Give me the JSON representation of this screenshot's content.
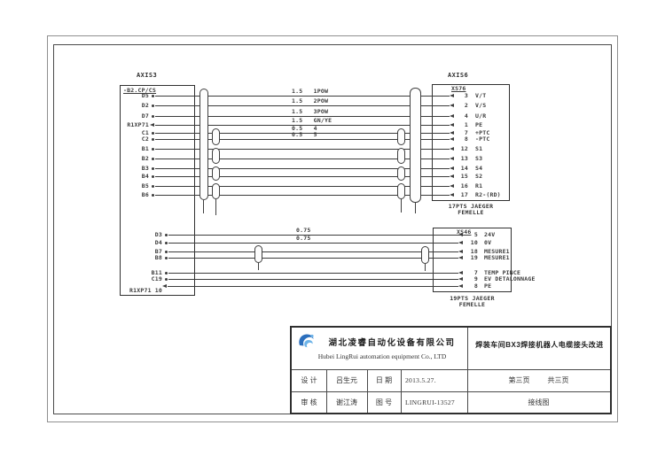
{
  "ink": "#3b3b3b",
  "logo_blue": "#2c6fbd",
  "logo_blue_light": "#6db3e8",
  "diagram": {
    "left_connector": {
      "title": "AXIS3",
      "header": "-B2.CP/CS",
      "footer": "R1XP71 10"
    },
    "right_connector_top": {
      "title": "AXIS6",
      "sub": "XS76",
      "caption1": "17PTS JAEGER",
      "caption2": "FEMELLE"
    },
    "right_connector_bottom": {
      "sub": "XS46",
      "caption1": "19PTS JAEGER",
      "caption2": "FEMELLE"
    },
    "top_wires": [
      {
        "from": "D5",
        "size": "1.5",
        "wire": "1POW",
        "pin": "3",
        "signal": "V/T"
      },
      {
        "from": "D2",
        "size": "1.5",
        "wire": "2POW",
        "pin": "2",
        "signal": "V/S"
      },
      {
        "from": "D7",
        "size": "1.5",
        "wire": "3POW",
        "pin": "4",
        "signal": "U/R"
      },
      {
        "from": "R1XP71",
        "arrow": true,
        "size": "1.5",
        "wire": "GN/YE",
        "pin": "1",
        "signal": "PE"
      },
      {
        "from": "C1",
        "size": "0.5",
        "wire": "4",
        "pin": "7",
        "signal": "+PTC"
      },
      {
        "from": "C2",
        "size": "0.5",
        "wire": "5",
        "pin": "8",
        "signal": "-PTC"
      },
      {
        "from": "B1",
        "pin": "12",
        "signal": "S1"
      },
      {
        "from": "B2",
        "pin": "13",
        "signal": "S3"
      },
      {
        "from": "B3",
        "pin": "14",
        "signal": "S4"
      },
      {
        "from": "B4",
        "pin": "15",
        "signal": "S2"
      },
      {
        "from": "B5",
        "pin": "16",
        "signal": "R1"
      },
      {
        "from": "B6",
        "pin": "17",
        "signal": "R2-(RD)"
      }
    ],
    "bottom_wires": [
      {
        "from": "D3",
        "size": "0.75",
        "pin": "5",
        "signal": "24V"
      },
      {
        "from": "D4",
        "size": "0.75",
        "pin": "10",
        "signal": "0V"
      },
      {
        "from": "B7",
        "pin": "18",
        "signal": "MESURE1"
      },
      {
        "from": "B8",
        "pin": "19",
        "signal": "MESURE1"
      },
      {
        "from": "B11",
        "pin": "7",
        "signal": "TEMP PINCE"
      },
      {
        "from": "C19",
        "pin": "9",
        "signal": "EV DETALONNAGE"
      },
      {
        "from": "",
        "arrow": true,
        "pin": "8",
        "signal": "PE"
      }
    ]
  },
  "title_block": {
    "company_cn": "湖北凌睿自动化设备有限公司",
    "company_en": "Hubei LingRui automation equipment Co., LTD",
    "drawing_title": "焊装车间BX3焊接机器人电缆接头改进",
    "design_label": "设 计",
    "designer": "吕生元",
    "date_label": "日 期",
    "date": "2013.5.27.",
    "check_label": "审 核",
    "checker": "谢江涛",
    "drawing_no_label": "图 号",
    "drawing_no": "LINGRUI-13527",
    "page": "第三页",
    "pages_total": "共三页",
    "sheet_name": "接线图"
  }
}
